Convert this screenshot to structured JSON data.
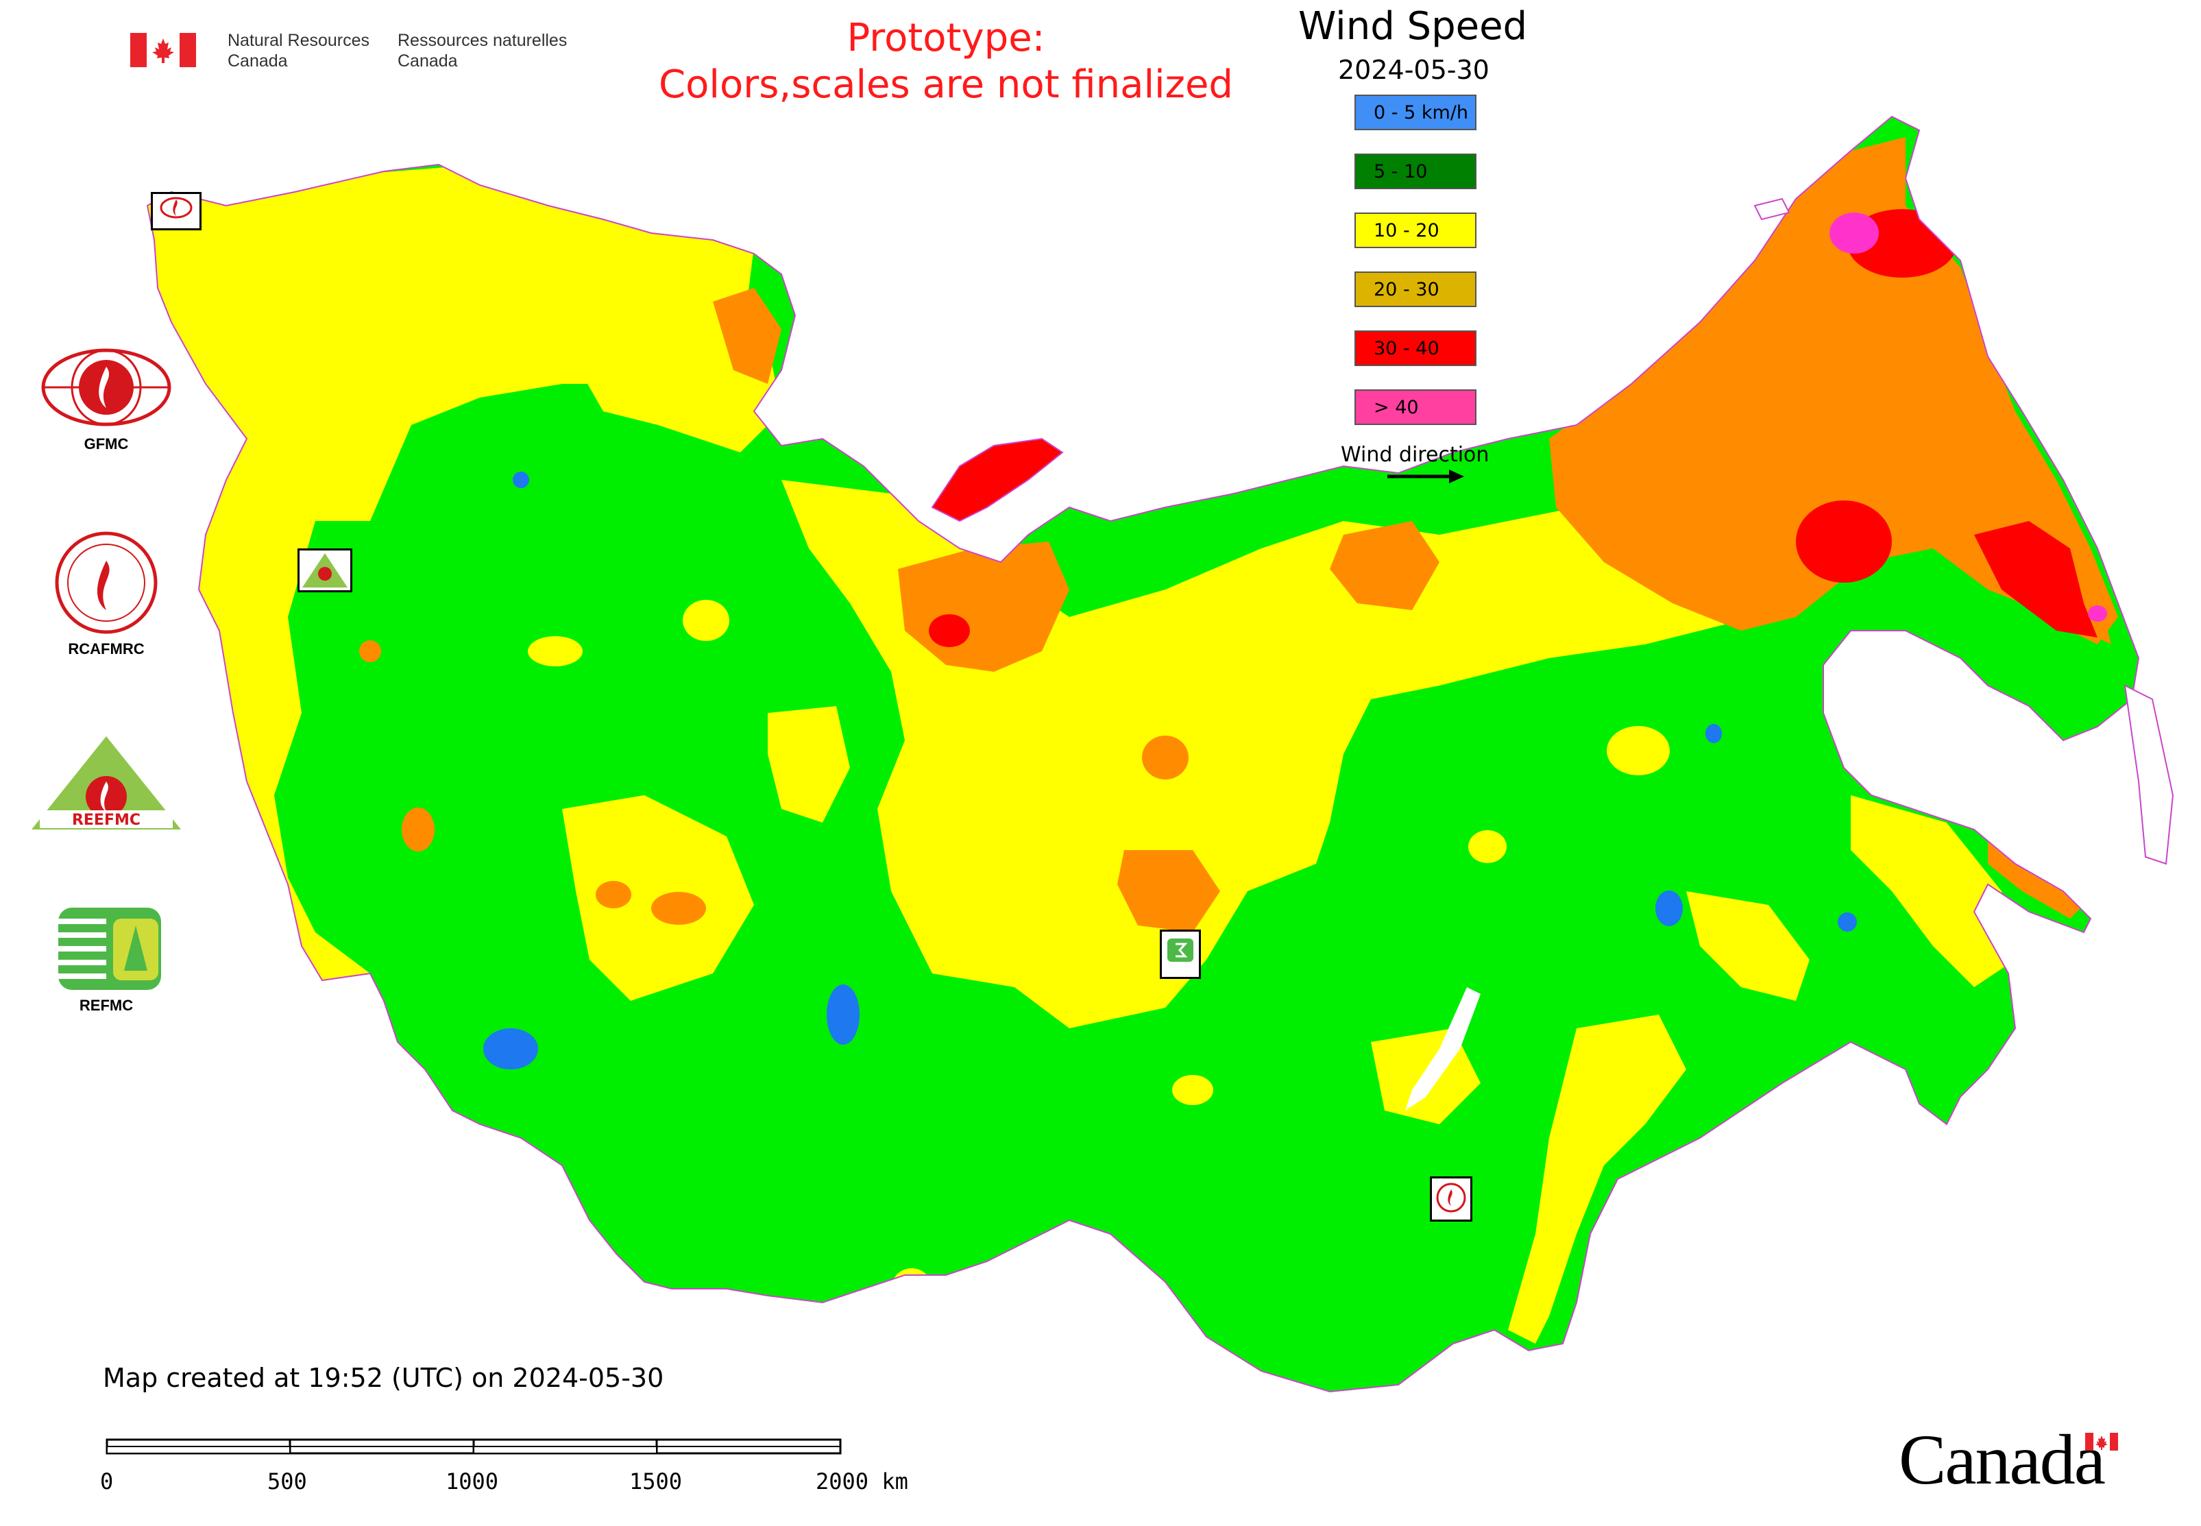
{
  "header": {
    "agency_en": [
      "Natural Resources",
      "Canada"
    ],
    "agency_fr": [
      "Ressources naturelles",
      "Canada"
    ],
    "prototype_lines": [
      "Prototype:",
      "Colors,scales are not finalized"
    ]
  },
  "legend": {
    "title": "Wind Speed",
    "date": "2024-05-30",
    "items": [
      {
        "label": "0 - 5 km/h",
        "color": "#3f8ff6"
      },
      {
        "label": "5 - 10",
        "color": "#008000"
      },
      {
        "label": "10 - 20",
        "color": "#ffff00"
      },
      {
        "label": "20 - 30",
        "color": "#dcb400"
      },
      {
        "label": "30 - 40",
        "color": "#ff0000"
      },
      {
        "label": "> 40",
        "color": "#ff40a0"
      }
    ],
    "wind_direction_label": "Wind direction"
  },
  "map": {
    "colors": {
      "low": "#1e78f0",
      "light": "#00ee00",
      "moderate": "#ffff00",
      "high": "#ff8c00",
      "very_high": "#ff0000",
      "extreme": "#ff33cc",
      "border": "#cc44cc"
    }
  },
  "logos": [
    {
      "label": "GFMC",
      "icon": "gfmc-logo-icon"
    },
    {
      "label": "RCAFMRC",
      "icon": "rcafmrc-logo-icon"
    },
    {
      "label": "REEFMC",
      "icon": "reefmc-logo-icon"
    },
    {
      "label": "REFMC",
      "icon": "refmc-logo-icon"
    }
  ],
  "footer": {
    "created": "Map created at 19:52 (UTC) on 2024-05-30",
    "scale_labels": [
      "0",
      "500",
      "1000",
      "1500",
      "2000 km"
    ],
    "canada_wordmark": "Canada"
  }
}
